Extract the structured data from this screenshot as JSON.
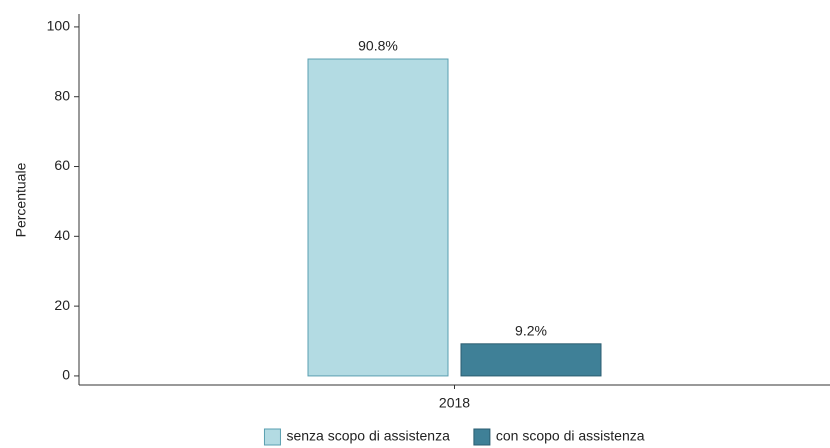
{
  "chart_data": {
    "type": "bar",
    "y_label": "Percentuale",
    "categories": [
      "2018"
    ],
    "series": [
      {
        "name": "senza scopo di assistenza",
        "color": "#b3dbe3",
        "edge": "#5a9fb0",
        "values": [
          90.8
        ],
        "value_labels": [
          "90.8%"
        ]
      },
      {
        "name": "con scopo di assistenza",
        "color": "#3f8097",
        "edge": "#2b5d70",
        "values": [
          9.2
        ],
        "value_labels": [
          "9.2%"
        ]
      }
    ],
    "ylim": [
      -2.6,
      103.7
    ],
    "yticks": [
      0,
      20,
      40,
      60,
      80,
      100
    ],
    "grid": false
  }
}
